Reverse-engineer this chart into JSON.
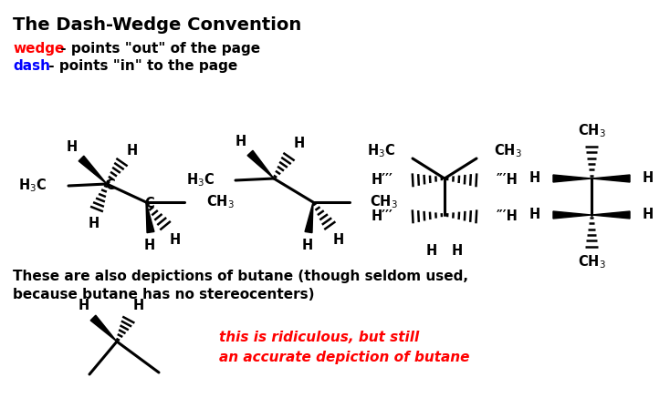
{
  "title": "The Dash-Wedge Convention",
  "wedge_label": "wedge",
  "wedge_color": "#ff0000",
  "dash_label": "dash",
  "dash_color": "#0000ff",
  "wedge_desc": " - points \"out\" of the page",
  "dash_desc": " - points \"in\" to the page",
  "bottom_text1": "These are also depictions of butane (though seldom used,",
  "bottom_text2": "because butane has no stereocenters)",
  "ridiculous_text1": "this is ridiculous, but still",
  "ridiculous_text2": "an accurate depiction of butane",
  "ridiculous_color": "#ff0000",
  "bg_color": "#ffffff",
  "text_color": "#000000",
  "title_fontsize": 14,
  "body_fontsize": 11,
  "mol_fontsize": 10.5,
  "mol_sub_fontsize": 8
}
